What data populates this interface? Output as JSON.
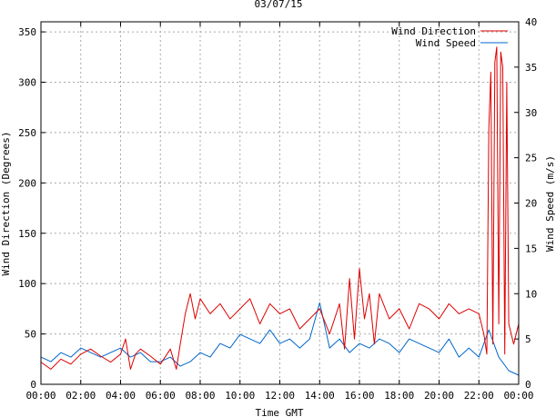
{
  "chart_data": {
    "type": "line",
    "title": "03/07/15",
    "xlabel": "Time GMT",
    "ylabel_left": "Wind Direction (Degrees)",
    "ylabel_right": "Wind Speed (m/s)",
    "x_unit": "hours GMT",
    "xlim": [
      0,
      24
    ],
    "ylim_left": [
      0,
      360
    ],
    "ylim_right": [
      0,
      40
    ],
    "x_ticks": [
      "00:00",
      "02:00",
      "04:00",
      "06:00",
      "08:00",
      "10:00",
      "12:00",
      "14:00",
      "16:00",
      "18:00",
      "20:00",
      "22:00",
      "00:00"
    ],
    "y_ticks_left": [
      "0",
      "50",
      "100",
      "150",
      "200",
      "250",
      "300",
      "350"
    ],
    "y_ticks_right": [
      "0",
      "5",
      "10",
      "15",
      "20",
      "25",
      "30",
      "35",
      "40"
    ],
    "grid": true,
    "legend_position": "top-right",
    "series": [
      {
        "name": "Wind Direction",
        "axis": "left",
        "color": "#dd0000",
        "x": [
          0.0,
          0.5,
          1.0,
          1.5,
          2.0,
          2.5,
          3.0,
          3.5,
          4.0,
          4.25,
          4.5,
          4.75,
          5.0,
          5.5,
          6.0,
          6.5,
          6.8,
          7.0,
          7.25,
          7.5,
          7.75,
          8.0,
          8.5,
          9.0,
          9.5,
          10.0,
          10.5,
          11.0,
          11.5,
          12.0,
          12.5,
          13.0,
          13.5,
          14.0,
          14.5,
          15.0,
          15.25,
          15.5,
          15.75,
          16.0,
          16.25,
          16.5,
          16.75,
          17.0,
          17.5,
          18.0,
          18.5,
          19.0,
          19.5,
          20.0,
          20.5,
          21.0,
          21.5,
          22.0,
          22.25,
          22.4,
          22.5,
          22.6,
          22.7,
          22.8,
          22.9,
          23.0,
          23.1,
          23.2,
          23.3,
          23.4,
          23.5,
          23.75,
          24.0
        ],
        "values": [
          22,
          15,
          25,
          20,
          30,
          35,
          28,
          22,
          30,
          45,
          15,
          30,
          35,
          28,
          20,
          35,
          15,
          40,
          70,
          90,
          65,
          85,
          70,
          80,
          65,
          75,
          85,
          60,
          80,
          70,
          75,
          55,
          65,
          75,
          50,
          80,
          35,
          105,
          45,
          115,
          65,
          90,
          40,
          90,
          65,
          75,
          55,
          80,
          75,
          65,
          80,
          70,
          75,
          70,
          50,
          30,
          255,
          310,
          40,
          320,
          335,
          60,
          330,
          315,
          30,
          300,
          60,
          40,
          60
        ]
      },
      {
        "name": "Wind Speed",
        "axis": "right",
        "color": "#0066cc",
        "x": [
          0.0,
          0.5,
          1.0,
          1.5,
          2.0,
          2.5,
          3.0,
          3.5,
          4.0,
          4.5,
          5.0,
          5.5,
          6.0,
          6.5,
          7.0,
          7.5,
          8.0,
          8.5,
          9.0,
          9.5,
          10.0,
          10.5,
          11.0,
          11.5,
          12.0,
          12.5,
          13.0,
          13.5,
          14.0,
          14.5,
          15.0,
          15.5,
          16.0,
          16.5,
          17.0,
          17.5,
          18.0,
          18.5,
          19.0,
          19.5,
          20.0,
          20.5,
          21.0,
          21.5,
          22.0,
          22.5,
          23.0,
          23.5,
          24.0
        ],
        "values": [
          3,
          2.5,
          3.5,
          3,
          4,
          3.5,
          3,
          3.5,
          4,
          3,
          3.5,
          2.5,
          2.5,
          3,
          2,
          2.5,
          3.5,
          3,
          4.5,
          4,
          5.5,
          5,
          4.5,
          6,
          4.5,
          5,
          4,
          5,
          9,
          4,
          5,
          3.5,
          4.5,
          4,
          5,
          4.5,
          3.5,
          5,
          4.5,
          4,
          3.5,
          5,
          3,
          4,
          3,
          6,
          3,
          1.5,
          1
        ]
      }
    ]
  }
}
